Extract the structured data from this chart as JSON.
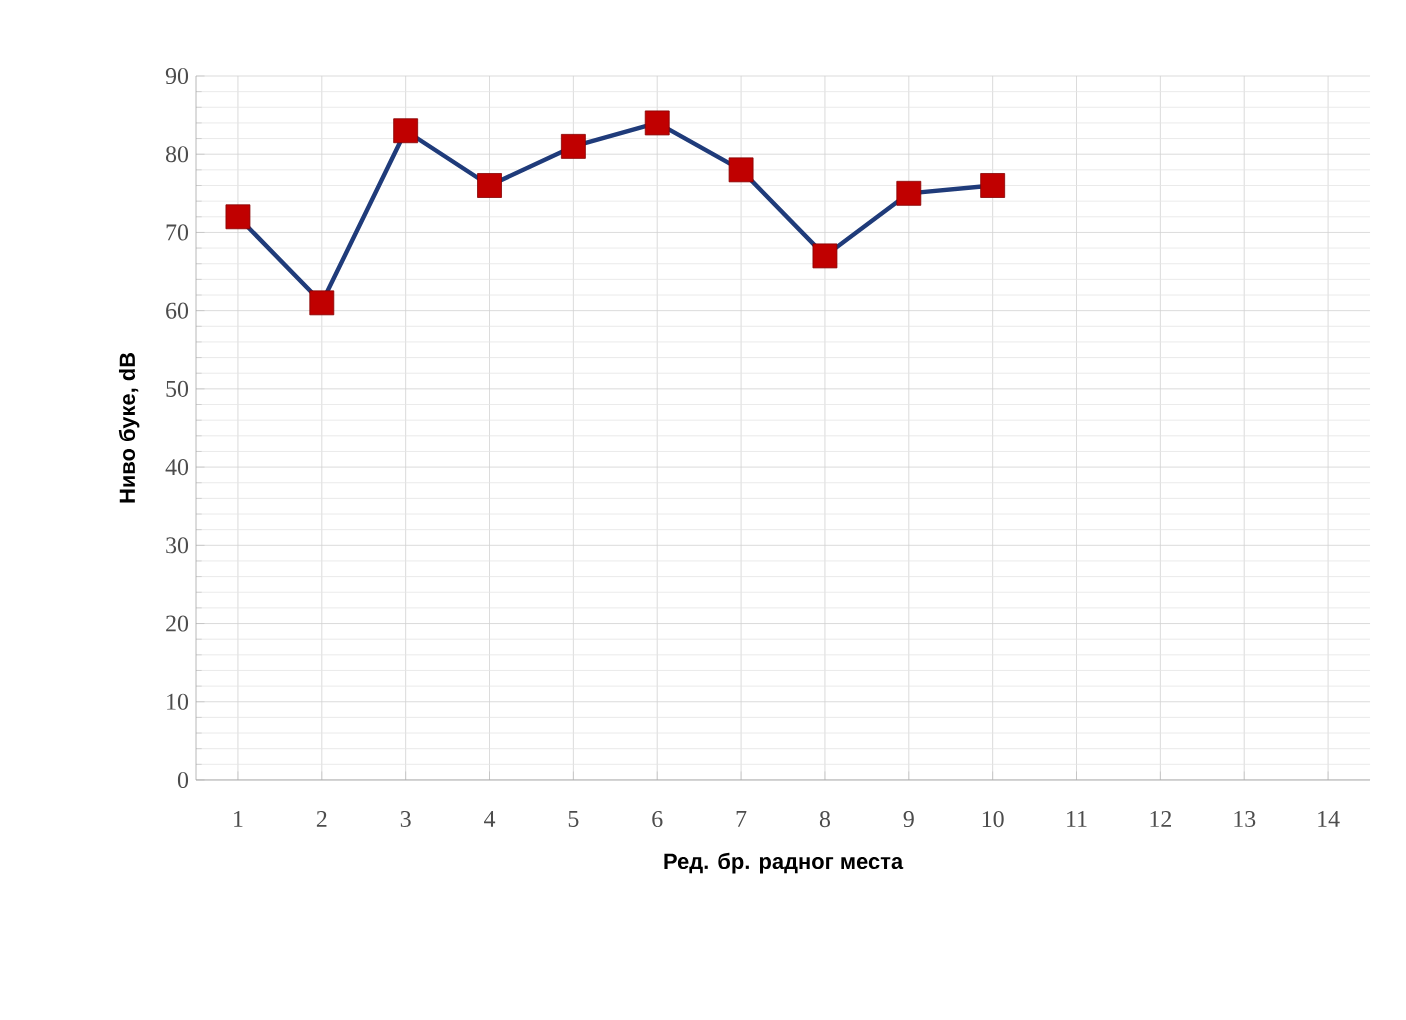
{
  "chart_data": {
    "type": "line",
    "xlabel": "Ред. бр. радног места",
    "ylabel": "Ниво буке, dB",
    "categories": [
      "1",
      "2",
      "3",
      "4",
      "5",
      "6",
      "7",
      "8",
      "9",
      "10",
      "11",
      "12",
      "13",
      "14"
    ],
    "series": [
      {
        "color": "#1f3b7a",
        "colors": [
          "#c00000",
          "#c00000",
          "#c00000",
          "#c00000",
          "#c00000",
          "#c00000",
          "#c00000",
          "#c00000",
          "#c00000",
          "#c00000",
          null,
          null,
          null,
          null
        ],
        "values": [
          72,
          61,
          83,
          76,
          81,
          84,
          78,
          67,
          75,
          76,
          null,
          null,
          null,
          null
        ]
      }
    ],
    "ylim": [
      0,
      90
    ],
    "yticks": [
      0,
      10,
      20,
      30,
      40,
      50,
      60,
      70,
      80,
      90
    ],
    "grid": true,
    "marker": "square",
    "line_style": "solid"
  }
}
